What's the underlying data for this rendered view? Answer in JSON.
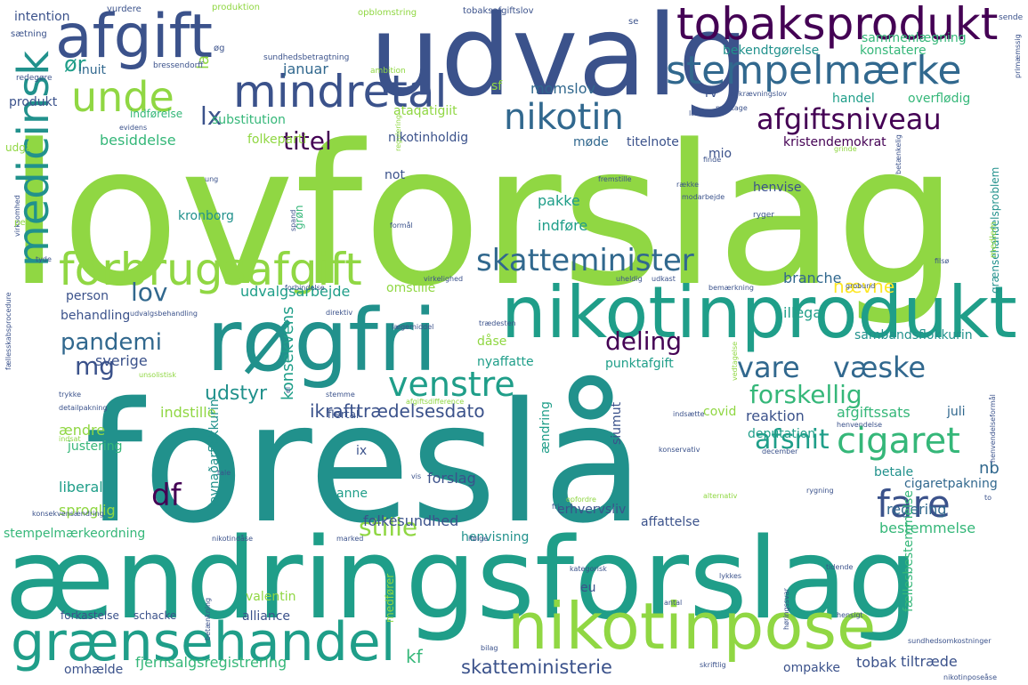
{
  "palette": {
    "purple": "#440154",
    "indigo": "#3b528b",
    "blue": "#31688e",
    "teal": "#21918c",
    "sea": "#1f9e89",
    "green": "#35b779",
    "lime": "#90d743",
    "yellow": "#fde725"
  },
  "words": [
    {
      "text": "lovforslag",
      "color": "lime"
    },
    {
      "text": "foreslå",
      "color": "teal"
    },
    {
      "text": "ændringsforslag",
      "color": "sea"
    },
    {
      "text": "udvalg",
      "color": "indigo"
    },
    {
      "text": "røgfri",
      "color": "teal"
    },
    {
      "text": "nikotinprodukt",
      "color": "sea"
    },
    {
      "text": "nikotinpose",
      "color": "lime"
    },
    {
      "text": "grænsehandel",
      "color": "sea"
    },
    {
      "text": "afgift",
      "color": "indigo"
    },
    {
      "text": "tobaksprodukt",
      "color": "purple"
    },
    {
      "text": "mindretal",
      "color": "indigo"
    },
    {
      "text": "stempelmærke",
      "color": "blue"
    },
    {
      "text": "forbrugsafgift",
      "color": "lime"
    },
    {
      "text": "medicinsk",
      "color": "teal"
    },
    {
      "text": "unde",
      "color": "lime"
    },
    {
      "text": "nikotin",
      "color": "blue"
    },
    {
      "text": "afgiftsniveau",
      "color": "purple"
    },
    {
      "text": "skatteminister",
      "color": "blue"
    },
    {
      "text": "cigaret",
      "color": "green"
    },
    {
      "text": "fare",
      "color": "indigo"
    },
    {
      "text": "venstre",
      "color": "sea"
    },
    {
      "text": "vare",
      "color": "blue"
    },
    {
      "text": "væske",
      "color": "blue"
    },
    {
      "text": "titel",
      "color": "purple"
    },
    {
      "text": "deling",
      "color": "purple"
    },
    {
      "text": "pandemi",
      "color": "blue"
    },
    {
      "text": "lov",
      "color": "blue"
    },
    {
      "text": "mg",
      "color": "indigo"
    },
    {
      "text": "df",
      "color": "purple"
    },
    {
      "text": "forskellig",
      "color": "green"
    },
    {
      "text": "afsnit",
      "color": "sea"
    },
    {
      "text": "stille",
      "color": "lime"
    },
    {
      "text": "skatteministerie",
      "color": "indigo"
    },
    {
      "text": "lx",
      "color": "indigo"
    },
    {
      "text": "ør",
      "color": "sea"
    },
    {
      "text": "udstyr",
      "color": "teal"
    },
    {
      "text": "konsekvens",
      "color": "sea"
    },
    {
      "text": "ikrafttrædelsesdato",
      "color": "indigo"
    },
    {
      "text": "nævne",
      "color": "yellow"
    },
    {
      "text": "la",
      "color": "lime"
    },
    {
      "text": "sverige",
      "color": "indigo"
    },
    {
      "text": "kf",
      "color": "green"
    },
    {
      "text": "januar",
      "color": "blue"
    },
    {
      "text": "momslov",
      "color": "blue"
    },
    {
      "text": "substitution",
      "color": "green"
    },
    {
      "text": "besiddelse",
      "color": "green"
    },
    {
      "text": "folkeparti",
      "color": "lime"
    },
    {
      "text": "nikotinholdig",
      "color": "indigo"
    },
    {
      "text": "møde",
      "color": "blue"
    },
    {
      "text": "titelnote",
      "color": "indigo"
    },
    {
      "text": "kristendemokrat",
      "color": "purple"
    },
    {
      "text": "handel",
      "color": "sea"
    },
    {
      "text": "overflødig",
      "color": "green"
    },
    {
      "text": "sammenlægning",
      "color": "green"
    },
    {
      "text": "bekendtgørelse",
      "color": "teal"
    },
    {
      "text": "konstatere",
      "color": "green"
    },
    {
      "text": "ataqatigiit",
      "color": "lime"
    },
    {
      "text": "produkt",
      "color": "indigo"
    },
    {
      "text": "inuit",
      "color": "blue"
    },
    {
      "text": "intention",
      "color": "indigo"
    },
    {
      "text": "indførelse",
      "color": "green"
    },
    {
      "text": "sf",
      "color": "lime"
    },
    {
      "text": "rv",
      "color": "indigo"
    },
    {
      "text": "mio",
      "color": "indigo"
    },
    {
      "text": "not",
      "color": "indigo"
    },
    {
      "text": "pakke",
      "color": "sea"
    },
    {
      "text": "indføre",
      "color": "sea"
    },
    {
      "text": "henvise",
      "color": "indigo"
    },
    {
      "text": "kronborg",
      "color": "teal"
    },
    {
      "text": "grøn",
      "color": "green"
    },
    {
      "text": "person",
      "color": "indigo"
    },
    {
      "text": "branche",
      "color": "blue"
    },
    {
      "text": "omstille",
      "color": "lime"
    },
    {
      "text": "udvalgsarbejde",
      "color": "sea"
    },
    {
      "text": "behandling",
      "color": "indigo"
    },
    {
      "text": "illegal",
      "color": "sea"
    },
    {
      "text": "sambandsflokkurin",
      "color": "teal"
    },
    {
      "text": "dåse",
      "color": "lime"
    },
    {
      "text": "nyaffatte",
      "color": "sea"
    },
    {
      "text": "punktafgift",
      "color": "sea"
    },
    {
      "text": "juli",
      "color": "blue"
    },
    {
      "text": "covid",
      "color": "lime"
    },
    {
      "text": "indstille",
      "color": "lime"
    },
    {
      "text": "reaktion",
      "color": "indigo"
    },
    {
      "text": "afgiftssats",
      "color": "green"
    },
    {
      "text": "deputation",
      "color": "sea"
    },
    {
      "text": "ændre",
      "color": "lime"
    },
    {
      "text": "justering",
      "color": "green"
    },
    {
      "text": "ix",
      "color": "indigo"
    },
    {
      "text": "nb",
      "color": "blue"
    },
    {
      "text": "liberal",
      "color": "sea"
    },
    {
      "text": "anne",
      "color": "sea"
    },
    {
      "text": "forslag",
      "color": "indigo"
    },
    {
      "text": "ændring",
      "color": "sea"
    },
    {
      "text": "siumut",
      "color": "indigo"
    },
    {
      "text": "betale",
      "color": "teal"
    },
    {
      "text": "cigaretpakning",
      "color": "blue"
    },
    {
      "text": "regering",
      "color": "blue"
    },
    {
      "text": "sproglig",
      "color": "lime"
    },
    {
      "text": "folkesundhed",
      "color": "indigo"
    },
    {
      "text": "erhvervsliv",
      "color": "indigo"
    },
    {
      "text": "affattelse",
      "color": "indigo"
    },
    {
      "text": "bestemmelse",
      "color": "green"
    },
    {
      "text": "stempelmærkeordning",
      "color": "green"
    },
    {
      "text": "henvisning",
      "color": "teal"
    },
    {
      "text": "javnaðarflokkurin",
      "color": "teal"
    },
    {
      "text": "eu",
      "color": "indigo"
    },
    {
      "text": "valentin",
      "color": "lime"
    },
    {
      "text": "alliance",
      "color": "indigo"
    },
    {
      "text": "forkastelse",
      "color": "indigo"
    },
    {
      "text": "schacke",
      "color": "indigo"
    },
    {
      "text": "fællesbestemmelse",
      "color": "green"
    },
    {
      "text": "omhælde",
      "color": "indigo"
    },
    {
      "text": "fjernsalgsregistrering",
      "color": "green"
    },
    {
      "text": "ompakke",
      "color": "indigo"
    },
    {
      "text": "tobak",
      "color": "indigo"
    },
    {
      "text": "tiltræde",
      "color": "indigo"
    },
    {
      "text": "flertal",
      "color": "indigo"
    },
    {
      "text": "medfører",
      "color": "lime"
    },
    {
      "text": "udgå",
      "color": "lime"
    },
    {
      "text": "vurdere",
      "color": "indigo"
    },
    {
      "text": "produktion",
      "color": "lime"
    },
    {
      "text": "opblomstring",
      "color": "lime"
    },
    {
      "text": "tobaksafgiftslov",
      "color": "indigo"
    },
    {
      "text": "se",
      "color": "indigo"
    },
    {
      "text": "sende",
      "color": "indigo"
    },
    {
      "text": "sætning",
      "color": "indigo"
    },
    {
      "text": "øg",
      "color": "indigo"
    },
    {
      "text": "sundhedsbetragtning",
      "color": "indigo"
    },
    {
      "text": "bressendorff",
      "color": "indigo"
    },
    {
      "text": "ambition",
      "color": "lime"
    },
    {
      "text": "redegøre",
      "color": "indigo"
    },
    {
      "text": "opkrævningslov",
      "color": "indigo"
    },
    {
      "text": "modtage",
      "color": "indigo"
    },
    {
      "text": "læse",
      "color": "indigo"
    },
    {
      "text": "evidens",
      "color": "indigo"
    },
    {
      "text": "ung",
      "color": "indigo"
    },
    {
      "text": "finde",
      "color": "indigo"
    },
    {
      "text": "fremstille",
      "color": "indigo"
    },
    {
      "text": "regulering",
      "color": "lime"
    },
    {
      "text": "række",
      "color": "indigo"
    },
    {
      "text": "modarbejde",
      "color": "indigo"
    },
    {
      "text": "ryger",
      "color": "indigo"
    },
    {
      "text": "betænkelig",
      "color": "indigo"
    },
    {
      "text": "virksomhed",
      "color": "indigo"
    },
    {
      "text": "formål",
      "color": "indigo"
    },
    {
      "text": "spand",
      "color": "indigo"
    },
    {
      "text": "grinde",
      "color": "lime"
    },
    {
      "text": "tyde",
      "color": "indigo"
    },
    {
      "text": "filsø",
      "color": "indigo"
    },
    {
      "text": "forbindelse",
      "color": "indigo"
    },
    {
      "text": "virkelighed",
      "color": "indigo"
    },
    {
      "text": "uheldig",
      "color": "indigo"
    },
    {
      "text": "udkast",
      "color": "indigo"
    },
    {
      "text": "grobund",
      "color": "indigo"
    },
    {
      "text": "bemærkning",
      "color": "indigo"
    },
    {
      "text": "direktiv",
      "color": "indigo"
    },
    {
      "text": "udvalgsbehandling",
      "color": "indigo"
    },
    {
      "text": "lægemiddel",
      "color": "indigo"
    },
    {
      "text": "trædesten",
      "color": "indigo"
    },
    {
      "text": "unsolistisk",
      "color": "lime"
    },
    {
      "text": "afgiftsdifference",
      "color": "lime"
    },
    {
      "text": "trykke",
      "color": "indigo"
    },
    {
      "text": "detailpakning",
      "color": "indigo"
    },
    {
      "text": "stemme",
      "color": "indigo"
    },
    {
      "text": "indsætte",
      "color": "indigo"
    },
    {
      "text": "henvendelse",
      "color": "indigo"
    },
    {
      "text": "vedtagelse",
      "color": "lime"
    },
    {
      "text": "indsat",
      "color": "lime"
    },
    {
      "text": "tale",
      "color": "indigo"
    },
    {
      "text": "vis",
      "color": "indigo"
    },
    {
      "text": "konservativ",
      "color": "indigo"
    },
    {
      "text": "december",
      "color": "indigo"
    },
    {
      "text": "alternativ",
      "color": "lime"
    },
    {
      "text": "rygning",
      "color": "indigo"
    },
    {
      "text": "konsekvensændring",
      "color": "indigo"
    },
    {
      "text": "marked",
      "color": "indigo"
    },
    {
      "text": "opfordre",
      "color": "lime"
    },
    {
      "text": "fri",
      "color": "indigo"
    },
    {
      "text": "to",
      "color": "indigo"
    },
    {
      "text": "nikotindåse",
      "color": "indigo"
    },
    {
      "text": "ifølge",
      "color": "indigo"
    },
    {
      "text": "kategorisk",
      "color": "indigo"
    },
    {
      "text": "lykkes",
      "color": "indigo"
    },
    {
      "text": "tidende",
      "color": "indigo"
    },
    {
      "text": "antal",
      "color": "indigo"
    },
    {
      "text": "hensigt",
      "color": "indigo"
    },
    {
      "text": "bilag",
      "color": "indigo"
    },
    {
      "text": "skriftlig",
      "color": "indigo"
    },
    {
      "text": "sundhedsomkostninger",
      "color": "indigo"
    },
    {
      "text": "nikotinposeåse",
      "color": "indigo"
    },
    {
      "text": "fællesskabsprocedure",
      "color": "indigo"
    },
    {
      "text": "grænsehandelsproblem",
      "color": "teal"
    },
    {
      "text": "medlem",
      "color": "lime"
    },
    {
      "text": "primæmssig",
      "color": "indigo"
    },
    {
      "text": "henvendelseformål",
      "color": "indigo"
    },
    {
      "text": "per",
      "color": "lime"
    },
    {
      "text": "el",
      "color": "indigo"
    },
    {
      "text": "betænkning",
      "color": "indigo"
    },
    {
      "text": "høringssvar",
      "color": "indigo"
    }
  ]
}
